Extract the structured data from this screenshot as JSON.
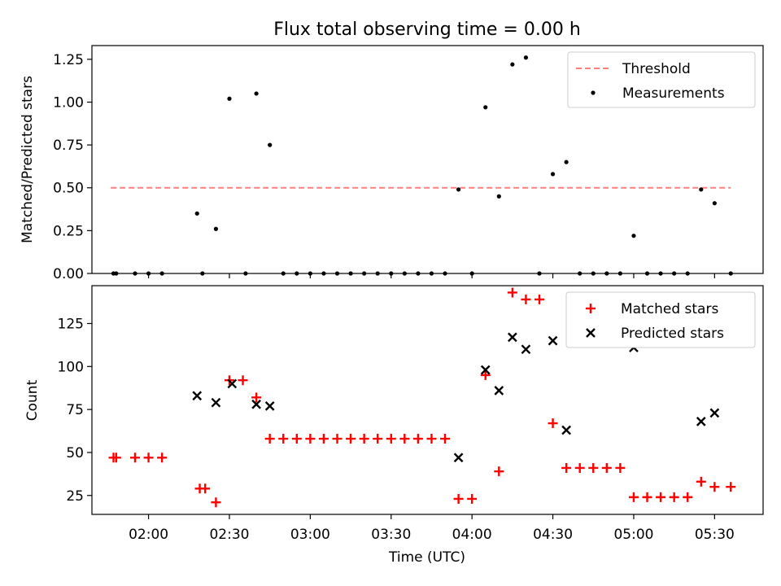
{
  "title": "Flux total observing time = 0.00 h",
  "colors": {
    "threshold": "#ff7f7f",
    "measurements": "#000000",
    "matched": "#ff0000",
    "predicted": "#000000"
  },
  "chart_data": [
    {
      "type": "scatter",
      "ylabel": "Matched/Predicted stars",
      "xlabel": "",
      "xlim": [
        "01:39",
        "05:48"
      ],
      "ylim": [
        0,
        1.33
      ],
      "yticks": [
        "0.00",
        "0.25",
        "0.50",
        "0.75",
        "1.00",
        "1.25"
      ],
      "grid": false,
      "legend_position": "top-right",
      "legend": [
        "Threshold",
        "Measurements"
      ],
      "threshold": {
        "name": "Threshold",
        "value": 0.5,
        "x_from": "01:46",
        "x_to": "05:36"
      },
      "series": [
        {
          "name": "Measurements",
          "x": [
            "01:47",
            "01:48",
            "01:55",
            "02:00",
            "02:05",
            "02:18",
            "02:20",
            "02:25",
            "02:30",
            "02:36",
            "02:40",
            "02:45",
            "02:50",
            "02:55",
            "03:00",
            "03:05",
            "03:10",
            "03:15",
            "03:20",
            "03:25",
            "03:30",
            "03:35",
            "03:40",
            "03:45",
            "03:50",
            "03:55",
            "04:00",
            "04:05",
            "04:10",
            "04:15",
            "04:20",
            "04:25",
            "04:30",
            "04:35",
            "04:40",
            "04:45",
            "04:50",
            "04:55",
            "05:00",
            "05:05",
            "05:10",
            "05:15",
            "05:20",
            "05:25",
            "05:30",
            "05:36"
          ],
          "y": [
            0.0,
            0.0,
            0.0,
            0.0,
            0.0,
            0.35,
            0.0,
            0.26,
            1.02,
            0.0,
            1.05,
            0.75,
            0.0,
            0.0,
            0.0,
            0.0,
            0.0,
            0.0,
            0.0,
            0.0,
            0.0,
            0.0,
            0.0,
            0.0,
            0.0,
            0.49,
            0.0,
            0.97,
            0.45,
            1.22,
            1.26,
            0.0,
            0.58,
            0.65,
            0.0,
            0.0,
            0.0,
            0.0,
            0.22,
            0.0,
            0.0,
            0.0,
            0.0,
            0.49,
            0.41,
            0.0
          ]
        }
      ]
    },
    {
      "type": "scatter",
      "ylabel": "Count",
      "xlabel": "Time (UTC)",
      "xlim": [
        "01:39",
        "05:48"
      ],
      "ylim": [
        14,
        147
      ],
      "yticks": [
        "25",
        "50",
        "75",
        "100",
        "125"
      ],
      "xticks": [
        "02:00",
        "02:30",
        "03:00",
        "03:30",
        "04:00",
        "04:30",
        "05:00",
        "05:30"
      ],
      "grid": false,
      "legend_position": "top-right",
      "legend": [
        "Matched stars",
        "Predicted stars"
      ],
      "series": [
        {
          "name": "Matched stars",
          "x": [
            "01:47",
            "01:48",
            "01:55",
            "02:00",
            "02:05",
            "02:19",
            "02:21",
            "02:25",
            "02:30",
            "02:35",
            "02:40",
            "02:45",
            "02:50",
            "02:55",
            "03:00",
            "03:05",
            "03:10",
            "03:15",
            "03:20",
            "03:25",
            "03:30",
            "03:35",
            "03:40",
            "03:45",
            "03:50",
            "03:55",
            "04:00",
            "04:05",
            "04:10",
            "04:15",
            "04:20",
            "04:25",
            "04:30",
            "04:35",
            "04:40",
            "04:45",
            "04:50",
            "04:55",
            "05:00",
            "05:05",
            "05:10",
            "05:15",
            "05:20",
            "05:25",
            "05:30",
            "05:36"
          ],
          "y": [
            47,
            47,
            47,
            47,
            47,
            29,
            29,
            21,
            92,
            92,
            82,
            58,
            58,
            58,
            58,
            58,
            58,
            58,
            58,
            58,
            58,
            58,
            58,
            58,
            58,
            23,
            23,
            95,
            39,
            143,
            139,
            139,
            67,
            41,
            41,
            41,
            41,
            41,
            24,
            24,
            24,
            24,
            24,
            33,
            30,
            30
          ]
        },
        {
          "name": "Predicted stars",
          "x": [
            "02:18",
            "02:25",
            "02:31",
            "02:40",
            "02:45",
            "03:55",
            "04:05",
            "04:10",
            "04:15",
            "04:20",
            "04:30",
            "04:35",
            "05:00",
            "05:25",
            "05:30"
          ],
          "y": [
            83,
            79,
            90,
            78,
            77,
            47,
            98,
            86,
            117,
            110,
            115,
            63,
            111,
            68,
            73
          ]
        }
      ]
    }
  ]
}
